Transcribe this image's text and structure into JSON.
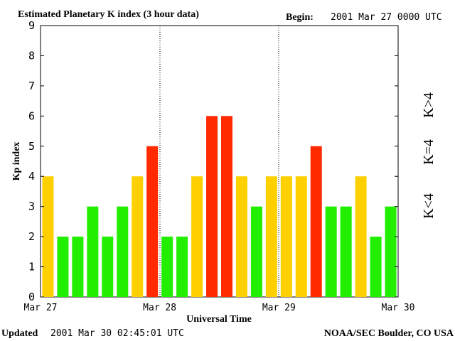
{
  "title": "Estimated Planetary K index (3 hour data)",
  "begin_label": "Begin:",
  "begin_value": "2001 Mar 27 0000 UTC",
  "updated_label": "Updated",
  "updated_value": "2001 Mar 30 02:45:01 UTC",
  "footer_right": "NOAA/SEC Boulder, CO USA",
  "legend": [
    {
      "label": "K<4",
      "color": "#22ee00"
    },
    {
      "label": "K=4",
      "color": "#ffd000"
    },
    {
      "label": "K>4",
      "color": "#ff2a00"
    }
  ],
  "chart_data": {
    "type": "bar",
    "title": "Estimated Planetary K index (3 hour data)",
    "xlabel": "Universal Time",
    "ylabel": "Kp index",
    "ylim": [
      0,
      9
    ],
    "yticks": [
      0,
      1,
      2,
      3,
      4,
      5,
      6,
      7,
      8,
      9
    ],
    "xtick_labels": [
      "Mar 27",
      "Mar 28",
      "Mar 29",
      "Mar 30"
    ],
    "values": [
      4,
      2,
      2,
      3,
      2,
      3,
      4,
      5,
      2,
      2,
      4,
      6,
      6,
      4,
      3,
      4,
      4,
      4,
      5,
      3,
      3,
      4,
      2,
      3
    ],
    "color_rule": {
      "below_4": "#22ee00",
      "equal_4": "#ffd000",
      "above_4": "#ff2a00"
    }
  }
}
